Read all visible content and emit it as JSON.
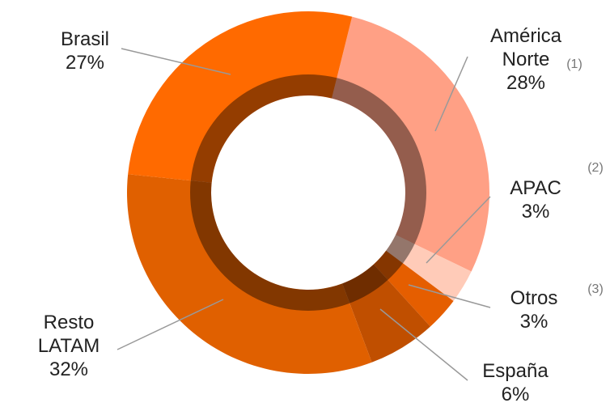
{
  "chart_data": {
    "type": "donut",
    "categories": [
      "América Norte",
      "APAC",
      "Otros",
      "España",
      "Resto LATAM",
      "Brasil"
    ],
    "values": [
      28,
      3,
      3,
      6,
      32,
      27
    ],
    "value_labels": [
      "28%",
      "3%",
      "3%",
      "6%",
      "32%",
      "27%"
    ],
    "colors": [
      "#ffa085",
      "#ffcbb8",
      "#e55e00",
      "#c04f00",
      "#e06000",
      "#ff6a00"
    ],
    "annotations": [
      "(1)",
      "(2)",
      "(3)"
    ]
  }
}
